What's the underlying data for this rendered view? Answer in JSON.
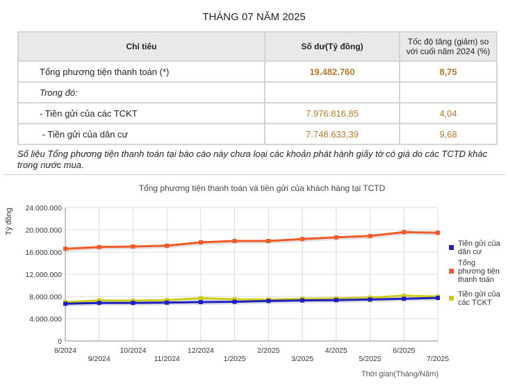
{
  "header": {
    "title": "THÁNG 07 NĂM 2025"
  },
  "table": {
    "headers": [
      "Chỉ tiêu",
      "Số dư(Tỷ đồng)",
      "Tốc độ tăng (giảm) so với cuối năm 2024 (%)"
    ],
    "rows": [
      {
        "label": "Tổng phương tiện thanh toán (*)",
        "balance": "19.482.760",
        "growth": "8,75"
      },
      {
        "label": "Trong đó:",
        "balance": "",
        "growth": ""
      },
      {
        "label": "- Tiền gửi của các TCKT",
        "balance": "7.976.816,85",
        "growth": "4,04"
      },
      {
        "label": " - Tiền gửi của dân cư",
        "balance": "7.748.633,39",
        "growth": "9,68"
      }
    ]
  },
  "note": "Số liệu Tổng phương tiện thanh toán tại báo cáo này chưa loại các khoản phát hành giấy tờ có giá do các TCTD khác trong nước mua.",
  "chart_data": {
    "type": "line",
    "title": "Tổng phương tiện thanh toán và tiền gửi của khách hàng tại TCTD",
    "xlabel": "Thời gian(Tháng/Năm)",
    "ylabel": "Tỷ đồng",
    "ylim": [
      0,
      24000000
    ],
    "yticks": [
      "0",
      "4.000.000",
      "8.000.000",
      "12.000.000",
      "16.000.000",
      "20.000.000",
      "24.000.000"
    ],
    "categories": [
      "8/2024",
      "9/2024",
      "10/2024",
      "11/2024",
      "12/2024",
      "1/2025",
      "2/2025",
      "3/2025",
      "4/2025",
      "5/2025",
      "6/2025",
      "7/2025"
    ],
    "grid": true,
    "legend": "right",
    "series": [
      {
        "name": "Tiền gửi của dân cư",
        "color": "#1f1fbf",
        "values": [
          6700000,
          6850000,
          6850000,
          6900000,
          7000000,
          7050000,
          7200000,
          7300000,
          7350000,
          7450000,
          7600000,
          7750000
        ]
      },
      {
        "name": "Tổng phương tiện thanh toán",
        "color": "#f05a28",
        "values": [
          16600000,
          16900000,
          17000000,
          17150000,
          17750000,
          18000000,
          18000000,
          18350000,
          18650000,
          18900000,
          19600000,
          19480000
        ]
      },
      {
        "name": "Tiền gửi của các TCKT",
        "color": "#cccc1a",
        "values": [
          7000000,
          7300000,
          7250000,
          7350000,
          7700000,
          7500000,
          7450000,
          7600000,
          7650000,
          7800000,
          8150000,
          7980000
        ]
      }
    ]
  }
}
